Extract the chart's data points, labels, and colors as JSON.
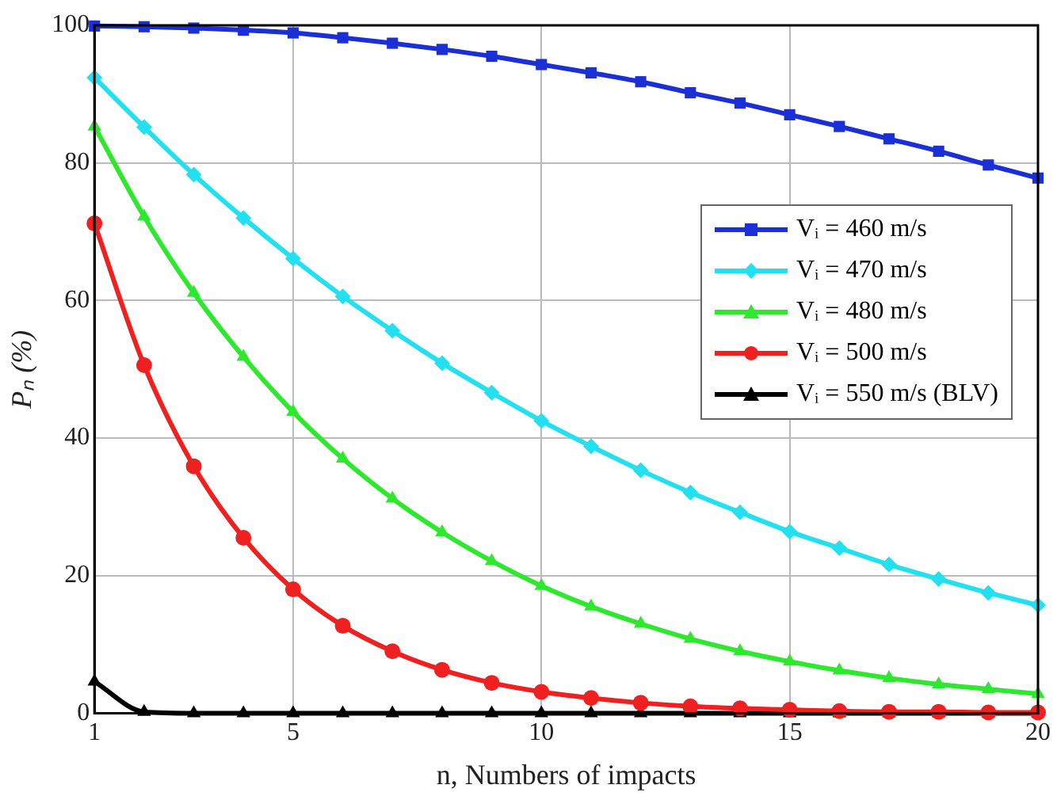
{
  "chart_data": {
    "type": "line",
    "xlabel": "n, Numbers of impacts",
    "ylabel": "Pₙ (%)",
    "x": [
      1,
      2,
      3,
      4,
      5,
      6,
      7,
      8,
      9,
      10,
      11,
      12,
      13,
      14,
      15,
      16,
      17,
      18,
      19,
      20
    ],
    "xlim": [
      1,
      20
    ],
    "xticks": [
      1,
      5,
      10,
      15,
      20
    ],
    "ylim": [
      0,
      100
    ],
    "yticks": [
      0,
      20,
      40,
      60,
      80,
      100
    ],
    "grid": true,
    "legend": "right",
    "line_style": "solid",
    "series": [
      {
        "name": "Vᵢ = 460 m/s",
        "color": "#1a2fd6",
        "marker": "square",
        "values": [
          99.9,
          99.8,
          99.6,
          99.3,
          98.9,
          98.2,
          97.4,
          96.5,
          95.5,
          94.3,
          93.1,
          91.8,
          90.2,
          88.7,
          87.0,
          85.3,
          83.5,
          81.7,
          79.7,
          77.8
        ]
      },
      {
        "name": "Vᵢ = 470 m/s",
        "color": "#22e0f0",
        "marker": "diamond",
        "values": [
          92.4,
          85.2,
          78.3,
          72.0,
          66.1,
          60.6,
          55.6,
          50.9,
          46.6,
          42.5,
          38.8,
          35.3,
          32.1,
          29.2,
          26.4,
          24.0,
          21.6,
          19.5,
          17.5,
          15.7
        ]
      },
      {
        "name": "Vᵢ = 480 m/s",
        "color": "#2ee82e",
        "marker": "triangle",
        "values": [
          85.3,
          72.2,
          61.1,
          51.8,
          43.8,
          37.0,
          31.2,
          26.3,
          22.1,
          18.5,
          15.5,
          13.0,
          10.8,
          9.0,
          7.5,
          6.2,
          5.1,
          4.2,
          3.5,
          2.8
        ]
      },
      {
        "name": "Vᵢ = 500 m/s",
        "color": "#ee2020",
        "marker": "circle",
        "values": [
          71.2,
          50.6,
          35.9,
          25.5,
          18.0,
          12.7,
          9.0,
          6.3,
          4.4,
          3.1,
          2.2,
          1.5,
          1.0,
          0.7,
          0.5,
          0.3,
          0.2,
          0.2,
          0.1,
          0.1
        ]
      },
      {
        "name": "Vᵢ = 550 m/s (BLV)",
        "color": "#000000",
        "marker": "triangle",
        "values": [
          4.6,
          0.2,
          0,
          0,
          0,
          0,
          0,
          0,
          0,
          0,
          0,
          0,
          0,
          0,
          0,
          0,
          0,
          0,
          0,
          0
        ]
      }
    ]
  }
}
